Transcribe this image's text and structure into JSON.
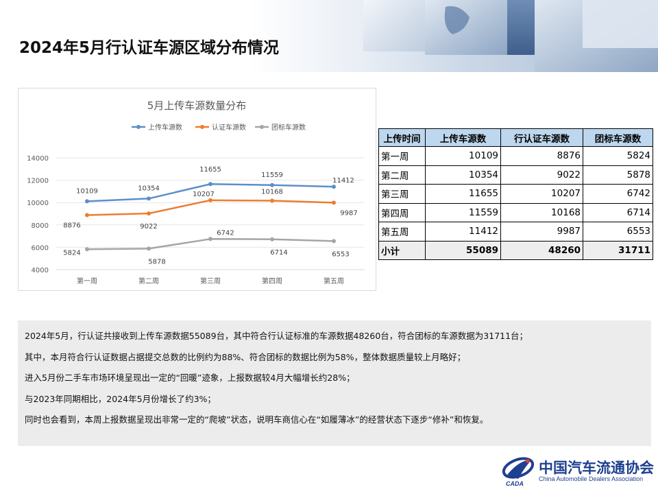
{
  "header": {
    "title": "2024年5月行认证车源区域分布情况"
  },
  "chart_data": {
    "type": "line",
    "title": "5月上传车源数量分布",
    "categories": [
      "第一周",
      "第二周",
      "第三周",
      "第四周",
      "第五周"
    ],
    "series": [
      {
        "name": "上传车源数",
        "values": [
          10109,
          10354,
          11655,
          11559,
          11412
        ],
        "color": "#5b8fc9"
      },
      {
        "name": "认证车源数",
        "values": [
          8876,
          9022,
          10207,
          10168,
          9987
        ],
        "color": "#ed7d31"
      },
      {
        "name": "团标车源数",
        "values": [
          5824,
          5878,
          6742,
          6714,
          6553
        ],
        "color": "#a5a5a5"
      }
    ],
    "yticks": [
      4000,
      6000,
      8000,
      10000,
      12000,
      14000
    ],
    "ylim": [
      4000,
      14000
    ],
    "grid": true,
    "legend": "top"
  },
  "table": {
    "headers": [
      "上传时间",
      "上传车源数",
      "行认证车源数",
      "团标车源数"
    ],
    "rows": [
      [
        "第一周",
        "10109",
        "8876",
        "5824"
      ],
      [
        "第二周",
        "10354",
        "9022",
        "5878"
      ],
      [
        "第三周",
        "11655",
        "10207",
        "6742"
      ],
      [
        "第四周",
        "11559",
        "10168",
        "6714"
      ],
      [
        "第五周",
        "11412",
        "9987",
        "6553"
      ]
    ],
    "total": [
      "小计",
      "55089",
      "48260",
      "31711"
    ]
  },
  "summary": [
    "2024年5月，行认证共接收到上传车源数据55089台，其中符合行认证标准的车源数据48260台，符合团标的车源数据为31711台；",
    "其中，本月符合行认证数据占据提交总数的比例约为88%、符合团标的数据比例为58%，整体数据质量较上月略好；",
    "进入5月份二手车市场环境呈现出一定的“回暖”迹象，上报数据较4月大幅增长约28%；",
    "与2023年同期相比，2024年5月份增长了约3%；",
    "同时也会看到，本周上报数据呈现出非常一定的“爬坡”状态，说明车商信心在“如履薄冰”的经营状态下逐步“修补”和恢复。"
  ],
  "logo": {
    "name_cn": "中国汽车流通协会",
    "name_en": "China Automobile Dealers Association",
    "abbr": "CADA"
  }
}
